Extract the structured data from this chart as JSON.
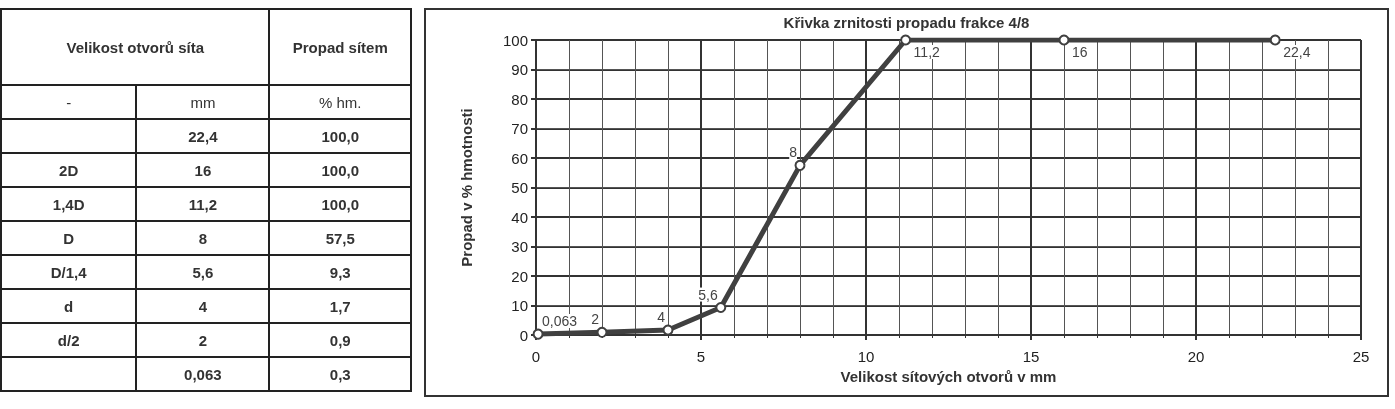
{
  "chart_data": [
    {
      "type": "other",
      "annotations": [
        "Velikost otvorů síta",
        "Propad sítem"
      ],
      "cell_labels": [
        [
          "-",
          "mm",
          "% hm."
        ],
        [
          null,
          "22,4",
          "100,0"
        ],
        [
          "2D",
          "16",
          "100,0"
        ],
        [
          "1,4D",
          "11,2",
          "100,0"
        ],
        [
          "D",
          "8",
          "57,5"
        ],
        [
          "D/1,4",
          "5,6",
          "9,3"
        ],
        [
          "d",
          "4",
          "1,7"
        ],
        [
          "d/2",
          "2",
          "0,9"
        ],
        [
          null,
          "0,063",
          "0,3"
        ]
      ]
    },
    {
      "type": "line",
      "title": "Křivka zrnitosti propadu frakce 4/8",
      "xlabel": "Velikost sítových otvorů v mm",
      "ylabel": "Propad v % hmotnosti",
      "x": [
        0.063,
        2,
        4,
        5.6,
        8,
        11.2,
        16,
        22.4
      ],
      "series": [
        {
          "color": "#404040",
          "values": [
            0.3,
            0.9,
            1.7,
            9.3,
            57.5,
            100,
            100,
            100
          ]
        }
      ],
      "annotations": [
        {
          "text": "0,063",
          "x": 0.063,
          "y": 0.3
        },
        {
          "text": "2",
          "x": 2,
          "y": 0.9
        },
        {
          "text": "4",
          "x": 4,
          "y": 1.7
        },
        {
          "text": "5,6",
          "x": 5.6,
          "y": 9.3
        },
        {
          "text": "8",
          "x": 8,
          "y": 57.5
        },
        {
          "text": "11,2",
          "x": 11.2,
          "y": 100
        },
        {
          "text": "16",
          "x": 16,
          "y": 100
        },
        {
          "text": "22,4",
          "x": 22.4,
          "y": 100
        }
      ],
      "xlim": [
        0,
        25
      ],
      "xticks": [
        0,
        5,
        10,
        15,
        20,
        25
      ],
      "ylim": [
        0,
        100
      ],
      "yticks": [
        0,
        10,
        20,
        30,
        40,
        50,
        60,
        70,
        80,
        90,
        100
      ],
      "grid": true,
      "marker": "circle",
      "line_style": "solid"
    }
  ]
}
